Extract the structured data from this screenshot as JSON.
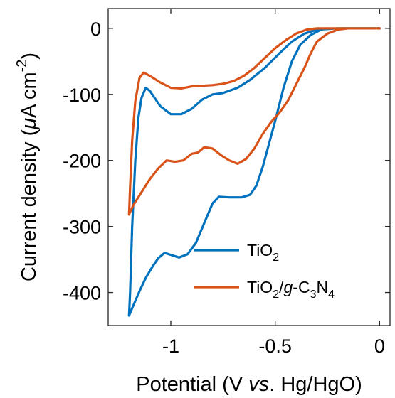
{
  "chart_data": {
    "type": "line",
    "xlabel": "Potential (V vs. Hg/HgO)",
    "xlabel_parts": [
      {
        "text": "Potential (V ",
        "style": "normal"
      },
      {
        "text": "vs",
        "style": "italic"
      },
      {
        "text": ". Hg/HgO)",
        "style": "normal"
      }
    ],
    "ylabel": "Current density (μA cm-2)",
    "ylabel_parts": [
      {
        "text": "Current density (",
        "style": "normal"
      },
      {
        "text": "μ",
        "style": "italic"
      },
      {
        "text": "A cm",
        "style": "normal"
      },
      {
        "text": "-2",
        "style": "sup"
      },
      {
        "text": ")",
        "style": "normal"
      }
    ],
    "xlim": [
      -1.3,
      0.05
    ],
    "ylim": [
      -450,
      30
    ],
    "x_ticks": [
      {
        "value": -1,
        "label": "-1"
      },
      {
        "value": -0.5,
        "label": "-0.5"
      },
      {
        "value": 0,
        "label": "0"
      }
    ],
    "y_ticks": [
      {
        "value": 0,
        "label": "0"
      },
      {
        "value": -100,
        "label": "-100"
      },
      {
        "value": -200,
        "label": "-200"
      },
      {
        "value": -300,
        "label": "-300"
      },
      {
        "value": -400,
        "label": "-400"
      }
    ],
    "grid": false,
    "legend_position": "bottom-right",
    "series": [
      {
        "name": "TiO2",
        "label_parts": [
          {
            "text": "TiO",
            "style": "normal"
          },
          {
            "text": "2",
            "style": "sub"
          }
        ],
        "color": "#0072BD",
        "points": [
          [
            -0.25,
            0
          ],
          [
            -0.28,
            -2
          ],
          [
            -0.33,
            -10
          ],
          [
            -0.38,
            -25
          ],
          [
            -0.42,
            -50
          ],
          [
            -0.46,
            -90
          ],
          [
            -0.5,
            -140
          ],
          [
            -0.53,
            -175
          ],
          [
            -0.56,
            -210
          ],
          [
            -0.59,
            -238
          ],
          [
            -0.62,
            -252
          ],
          [
            -0.66,
            -256
          ],
          [
            -0.72,
            -256
          ],
          [
            -0.77,
            -255
          ],
          [
            -0.8,
            -265
          ],
          [
            -0.84,
            -295
          ],
          [
            -0.88,
            -325
          ],
          [
            -0.92,
            -342
          ],
          [
            -0.96,
            -347
          ],
          [
            -1.0,
            -343
          ],
          [
            -1.03,
            -340
          ],
          [
            -1.06,
            -348
          ],
          [
            -1.09,
            -362
          ],
          [
            -1.12,
            -378
          ],
          [
            -1.15,
            -398
          ],
          [
            -1.18,
            -420
          ],
          [
            -1.2,
            -435
          ],
          [
            -1.195,
            -400
          ],
          [
            -1.185,
            -300
          ],
          [
            -1.17,
            -200
          ],
          [
            -1.155,
            -135
          ],
          [
            -1.14,
            -105
          ],
          [
            -1.12,
            -90
          ],
          [
            -1.1,
            -95
          ],
          [
            -1.05,
            -118
          ],
          [
            -1.0,
            -130
          ],
          [
            -0.95,
            -130
          ],
          [
            -0.9,
            -122
          ],
          [
            -0.85,
            -108
          ],
          [
            -0.8,
            -100
          ],
          [
            -0.75,
            -98
          ],
          [
            -0.68,
            -90
          ],
          [
            -0.62,
            -78
          ],
          [
            -0.55,
            -60
          ],
          [
            -0.48,
            -38
          ],
          [
            -0.42,
            -20
          ],
          [
            -0.36,
            -8
          ],
          [
            -0.3,
            -2
          ],
          [
            -0.2,
            0
          ],
          [
            0,
            0
          ]
        ]
      },
      {
        "name": "TiO2/g-C3N4",
        "label_parts": [
          {
            "text": "TiO",
            "style": "normal"
          },
          {
            "text": "2",
            "style": "sub"
          },
          {
            "text": "/",
            "style": "normal"
          },
          {
            "text": "g",
            "style": "italic"
          },
          {
            "text": "-C",
            "style": "normal"
          },
          {
            "text": "3",
            "style": "sub"
          },
          {
            "text": "N",
            "style": "normal"
          },
          {
            "text": "4",
            "style": "sub"
          }
        ],
        "color": "#D95319",
        "points": [
          [
            -0.15,
            0
          ],
          [
            -0.2,
            -2
          ],
          [
            -0.25,
            -8
          ],
          [
            -0.3,
            -20
          ],
          [
            -0.33,
            -38
          ],
          [
            -0.36,
            -60
          ],
          [
            -0.4,
            -85
          ],
          [
            -0.44,
            -110
          ],
          [
            -0.48,
            -128
          ],
          [
            -0.52,
            -142
          ],
          [
            -0.56,
            -160
          ],
          [
            -0.6,
            -182
          ],
          [
            -0.64,
            -198
          ],
          [
            -0.68,
            -205
          ],
          [
            -0.72,
            -200
          ],
          [
            -0.76,
            -192
          ],
          [
            -0.8,
            -182
          ],
          [
            -0.84,
            -180
          ],
          [
            -0.87,
            -188
          ],
          [
            -0.9,
            -190
          ],
          [
            -0.94,
            -200
          ],
          [
            -0.98,
            -202
          ],
          [
            -1.02,
            -200
          ],
          [
            -1.06,
            -212
          ],
          [
            -1.1,
            -228
          ],
          [
            -1.14,
            -248
          ],
          [
            -1.18,
            -268
          ],
          [
            -1.2,
            -282
          ],
          [
            -1.195,
            -240
          ],
          [
            -1.185,
            -170
          ],
          [
            -1.17,
            -110
          ],
          [
            -1.15,
            -75
          ],
          [
            -1.13,
            -67
          ],
          [
            -1.1,
            -72
          ],
          [
            -1.05,
            -82
          ],
          [
            -1.0,
            -90
          ],
          [
            -0.95,
            -91
          ],
          [
            -0.9,
            -88
          ],
          [
            -0.85,
            -87
          ],
          [
            -0.8,
            -86
          ],
          [
            -0.75,
            -84
          ],
          [
            -0.7,
            -80
          ],
          [
            -0.65,
            -72
          ],
          [
            -0.6,
            -60
          ],
          [
            -0.55,
            -45
          ],
          [
            -0.5,
            -30
          ],
          [
            -0.45,
            -18
          ],
          [
            -0.4,
            -8
          ],
          [
            -0.35,
            -2
          ],
          [
            -0.3,
            0
          ],
          [
            0,
            0
          ]
        ]
      }
    ]
  }
}
